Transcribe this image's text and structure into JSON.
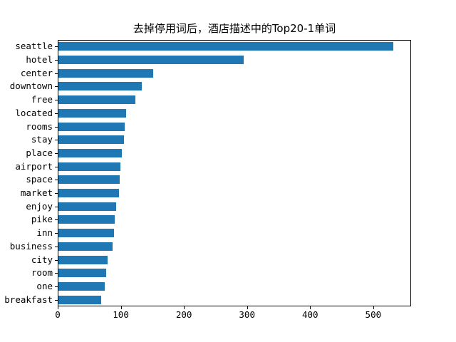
{
  "title": "去掉停用词后，酒店描述中的Top20-1单词",
  "chart_data": {
    "type": "bar",
    "orientation": "horizontal",
    "title": "去掉停用词后，酒店描述中的Top20-1单词",
    "xlabel": "",
    "ylabel": "",
    "categories": [
      "seattle",
      "hotel",
      "center",
      "downtown",
      "free",
      "located",
      "rooms",
      "stay",
      "place",
      "airport",
      "space",
      "market",
      "enjoy",
      "pike",
      "inn",
      "business",
      "city",
      "room",
      "one",
      "breakfast"
    ],
    "values": [
      531,
      293,
      150,
      132,
      122,
      107,
      105,
      104,
      100,
      98,
      97,
      96,
      91,
      89,
      88,
      86,
      78,
      76,
      73,
      68
    ],
    "xlim": [
      0,
      560
    ],
    "x_ticks": [
      0,
      100,
      200,
      300,
      400,
      500
    ],
    "bar_color": "#1f77b4",
    "axis_color": "#000000",
    "grid": false,
    "legend_position": "none"
  }
}
